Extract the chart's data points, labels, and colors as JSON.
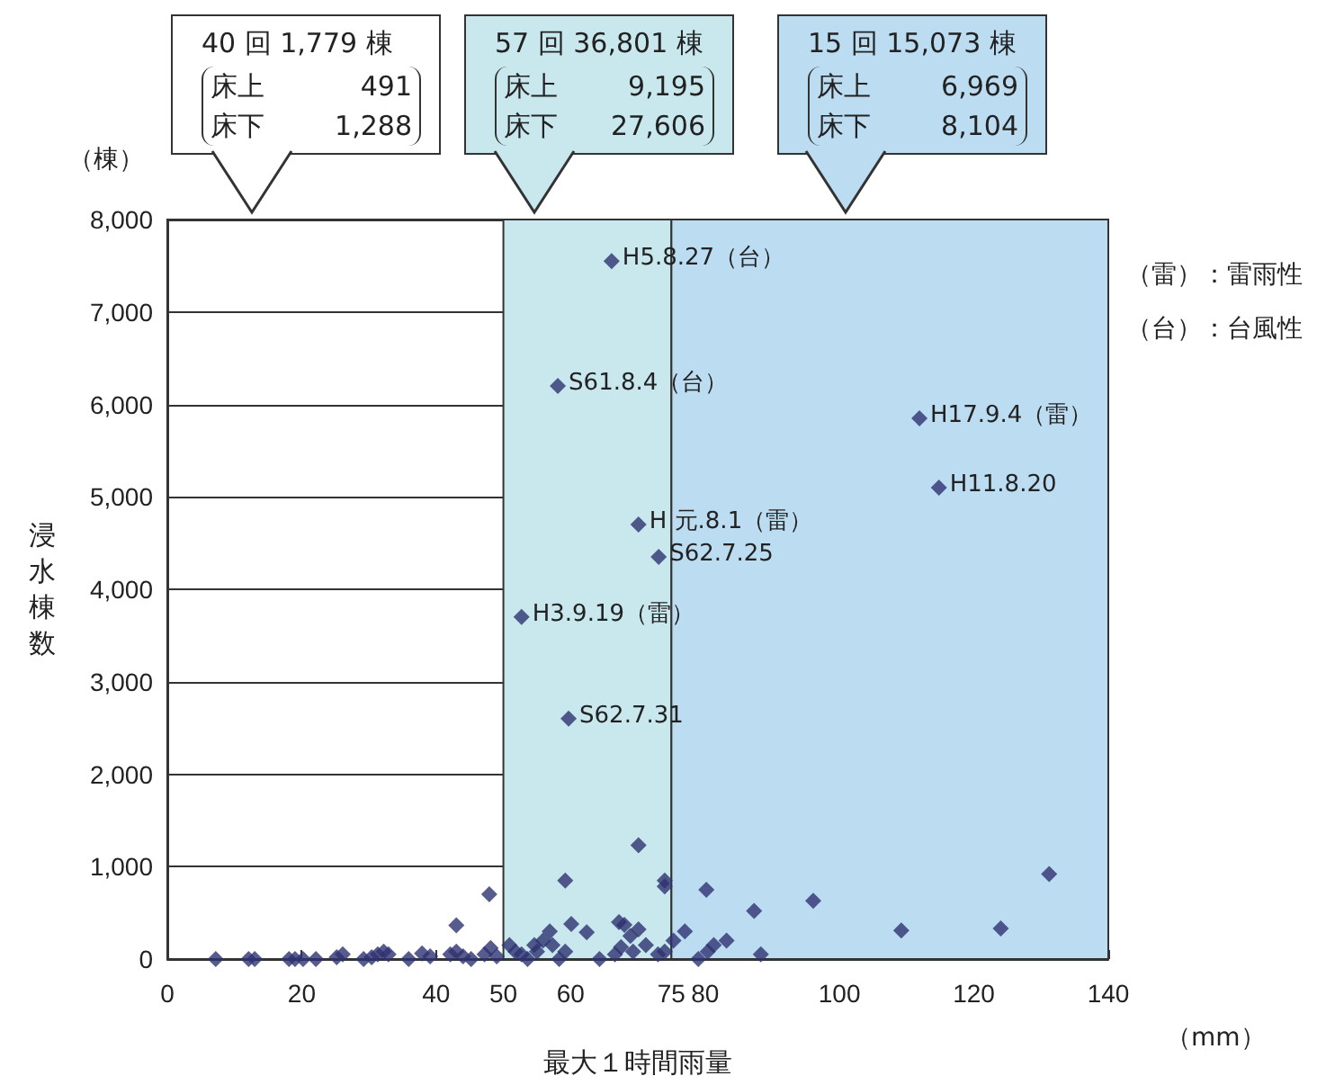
{
  "chart_data": {
    "type": "scatter",
    "xlabel": "最大１時間雨量",
    "ylabel": "浸水棟数",
    "annotations": [
      "（棟）",
      "（mm）",
      "（雷）：雷雨性",
      "（台）：台風性",
      "40 回 1,779 棟",
      "床上 491",
      "床下 1,288",
      "57 回 36,801 棟",
      "床上 9,195",
      "床下 27,606",
      "15 回 15,073 棟",
      "床上 6,969",
      "床下 8,104",
      {
        "text": "H5.8.27（台）",
        "x": 66.1,
        "y": 7550
      },
      {
        "text": "S61.8.4（台）",
        "x": 58.1,
        "y": 6200
      },
      {
        "text": "H17.9.4（雷）",
        "x": 111.9,
        "y": 5850
      },
      {
        "text": "H11.8.20",
        "x": 114.8,
        "y": 5100
      },
      {
        "text": "H 元.8.1（雷）",
        "x": 70.1,
        "y": 4700
      },
      {
        "text": "S62.7.25",
        "x": 73.1,
        "y": 4350
      },
      {
        "text": "H3.9.19（雷）",
        "x": 52.7,
        "y": 3700
      },
      {
        "text": "S62.7.31",
        "x": 59.7,
        "y": 2600
      }
    ],
    "series": [
      {
        "color": "#2e3270",
        "x": [
          66.1,
          58.1,
          111.9,
          114.8,
          70.1,
          73.1,
          52.7,
          59.7,
          7.2,
          12.1,
          13.0,
          18.1,
          19.0,
          20.2,
          22.1,
          25.2,
          26.1,
          29.2,
          30.4,
          31.3,
          32.2,
          32.9,
          35.9,
          37.9,
          39.1,
          42.1,
          43.0,
          44.0,
          45.2,
          43.0,
          47.9,
          47.2,
          48.1,
          49.0,
          50.9,
          51.8,
          52.7,
          53.6,
          54.6,
          55.0,
          55.9,
          56.9,
          57.3,
          58.3,
          59.2,
          60.1,
          62.4,
          59.2,
          64.3,
          66.6,
          67.2,
          68.0,
          68.9,
          70.1,
          67.5,
          69.3,
          71.2,
          73.0,
          74.0,
          74.0,
          74.0,
          70.1,
          75.3,
          77.0,
          79.0,
          80.2,
          80.4,
          81.3,
          83.2,
          87.3,
          88.3,
          96.1,
          109.2,
          124.0,
          131.2
        ],
        "values": [
          7550,
          6200,
          5850,
          5100,
          4700,
          4350,
          3700,
          2600,
          0,
          0,
          0,
          0,
          0,
          0,
          0,
          20,
          50,
          0,
          20,
          50,
          80,
          50,
          0,
          60,
          30,
          50,
          80,
          30,
          0,
          364,
          700,
          50,
          120,
          30,
          150,
          80,
          50,
          0,
          150,
          80,
          200,
          300,
          150,
          0,
          80,
          380,
          290,
          850,
          0,
          50,
          400,
          370,
          250,
          320,
          130,
          80,
          150,
          50,
          80,
          850,
          785,
          1230,
          200,
          300,
          0,
          750,
          80,
          150,
          200,
          520,
          50,
          630,
          310,
          330,
          920
        ]
      }
    ],
    "xlim": [
      0,
      140
    ],
    "xticks": [
      0,
      20,
      40,
      50,
      60,
      75,
      80,
      100,
      120,
      140
    ],
    "ylim": [
      0,
      8000
    ],
    "yticks": [
      0,
      {
        "value": 1000,
        "label": "1,000"
      },
      {
        "value": 2000,
        "label": "2,000"
      },
      {
        "value": 3000,
        "label": "3,000"
      },
      {
        "value": 4000,
        "label": "4,000"
      },
      {
        "value": 5000,
        "label": "5,000"
      },
      {
        "value": 6000,
        "label": "6,000"
      },
      {
        "value": 7000,
        "label": "7,000"
      },
      {
        "value": 8000,
        "label": "8,000"
      }
    ],
    "bands": [
      {
        "axis": "x",
        "from": 50,
        "to": 75,
        "color": "#c8e8ee"
      },
      {
        "axis": "x",
        "from": 75,
        "to": 140,
        "color": "#bcdcf2"
      }
    ],
    "grid": "y",
    "marker": "diamond"
  }
}
